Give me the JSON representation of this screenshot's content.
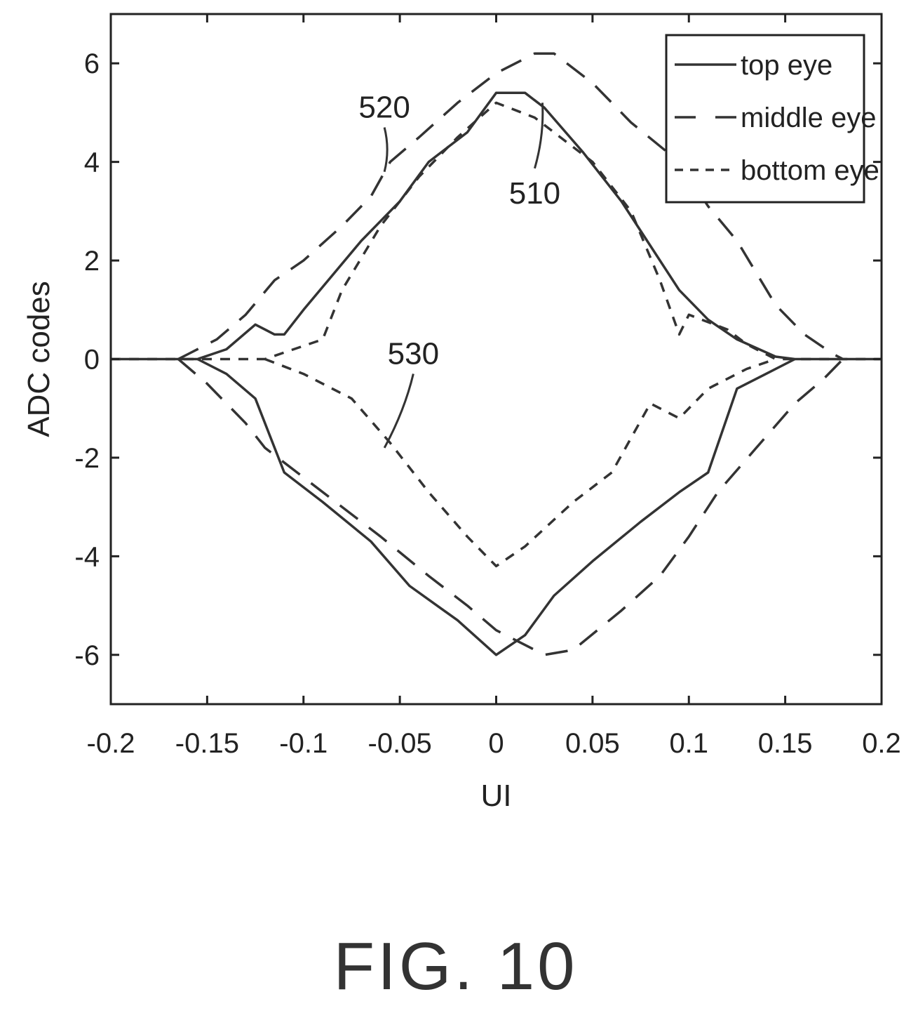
{
  "figure_label": "FIG. 10",
  "chart_data": {
    "type": "line",
    "xlabel": "UI",
    "ylabel": "ADC codes",
    "xlim": [
      -0.2,
      0.2
    ],
    "ylim": [
      -7,
      7
    ],
    "xticks": [
      -0.2,
      -0.15,
      -0.1,
      -0.05,
      0,
      0.05,
      0.1,
      0.15,
      0.2
    ],
    "yticks": [
      -6,
      -4,
      -2,
      0,
      2,
      4,
      6
    ],
    "xtick_labels": [
      "-0.2",
      "-0.15",
      "-0.1",
      "-0.05",
      "0",
      "0.05",
      "0.1",
      "0.15",
      "0.2"
    ],
    "ytick_labels": [
      "-6",
      "-4",
      "-2",
      "0",
      "2",
      "4",
      "6"
    ],
    "grid": false,
    "legend_position": "top-right",
    "colors": {
      "line": "#333333",
      "axis": "#222222"
    },
    "series": [
      {
        "name": "top eye",
        "dash": "solid",
        "upper": [
          [
            -0.2,
            0
          ],
          [
            -0.155,
            0
          ],
          [
            -0.14,
            0.2
          ],
          [
            -0.125,
            0.7
          ],
          [
            -0.115,
            0.5
          ],
          [
            -0.11,
            0.5
          ],
          [
            -0.1,
            1.0
          ],
          [
            -0.085,
            1.7
          ],
          [
            -0.07,
            2.4
          ],
          [
            -0.05,
            3.2
          ],
          [
            -0.035,
            4.0
          ],
          [
            -0.015,
            4.6
          ],
          [
            0,
            5.4
          ],
          [
            0.015,
            5.4
          ],
          [
            0.025,
            5.1
          ],
          [
            0.045,
            4.2
          ],
          [
            0.065,
            3.2
          ],
          [
            0.08,
            2.3
          ],
          [
            0.095,
            1.4
          ],
          [
            0.11,
            0.8
          ],
          [
            0.125,
            0.4
          ],
          [
            0.145,
            0.05
          ],
          [
            0.155,
            0
          ],
          [
            0.2,
            0
          ]
        ],
        "lower": [
          [
            -0.155,
            0
          ],
          [
            -0.14,
            -0.3
          ],
          [
            -0.125,
            -0.8
          ],
          [
            -0.11,
            -2.3
          ],
          [
            -0.09,
            -2.9
          ],
          [
            -0.065,
            -3.7
          ],
          [
            -0.045,
            -4.6
          ],
          [
            -0.02,
            -5.3
          ],
          [
            0,
            -6.0
          ],
          [
            0.015,
            -5.6
          ],
          [
            0.03,
            -4.8
          ],
          [
            0.05,
            -4.1
          ],
          [
            0.075,
            -3.3
          ],
          [
            0.095,
            -2.7
          ],
          [
            0.11,
            -2.3
          ],
          [
            0.125,
            -0.6
          ],
          [
            0.14,
            -0.3
          ],
          [
            0.155,
            0
          ]
        ]
      },
      {
        "name": "middle eye",
        "dash": "long-dash",
        "upper": [
          [
            -0.165,
            0
          ],
          [
            -0.16,
            0.1
          ],
          [
            -0.145,
            0.4
          ],
          [
            -0.13,
            0.9
          ],
          [
            -0.115,
            1.6
          ],
          [
            -0.1,
            2.0
          ],
          [
            -0.08,
            2.7
          ],
          [
            -0.065,
            3.3
          ],
          [
            -0.055,
            4.0
          ],
          [
            -0.04,
            4.5
          ],
          [
            -0.02,
            5.2
          ],
          [
            0,
            5.8
          ],
          [
            0.02,
            6.2
          ],
          [
            0.03,
            6.2
          ],
          [
            0.05,
            5.6
          ],
          [
            0.07,
            4.8
          ],
          [
            0.095,
            4.0
          ],
          [
            0.11,
            3.1
          ],
          [
            0.125,
            2.4
          ],
          [
            0.145,
            1.1
          ],
          [
            0.16,
            0.5
          ],
          [
            0.175,
            0.1
          ],
          [
            0.18,
            0
          ]
        ],
        "lower": [
          [
            -0.165,
            0
          ],
          [
            -0.15,
            -0.5
          ],
          [
            -0.13,
            -1.3
          ],
          [
            -0.12,
            -1.8
          ],
          [
            -0.1,
            -2.4
          ],
          [
            -0.08,
            -3.0
          ],
          [
            -0.06,
            -3.6
          ],
          [
            -0.035,
            -4.4
          ],
          [
            -0.015,
            -5.0
          ],
          [
            0,
            -5.5
          ],
          [
            0.015,
            -5.8
          ],
          [
            0.025,
            -6.0
          ],
          [
            0.04,
            -5.9
          ],
          [
            0.065,
            -5.1
          ],
          [
            0.085,
            -4.4
          ],
          [
            0.1,
            -3.6
          ],
          [
            0.115,
            -2.7
          ],
          [
            0.135,
            -1.8
          ],
          [
            0.155,
            -0.9
          ],
          [
            0.17,
            -0.4
          ],
          [
            0.18,
            0
          ]
        ]
      },
      {
        "name": "bottom eye",
        "dash": "short-dash",
        "upper": [
          [
            -0.2,
            0
          ],
          [
            -0.12,
            0
          ],
          [
            -0.09,
            0.4
          ],
          [
            -0.08,
            1.4
          ],
          [
            -0.06,
            2.7
          ],
          [
            -0.04,
            3.7
          ],
          [
            -0.02,
            4.5
          ],
          [
            0,
            5.2
          ],
          [
            0.02,
            4.9
          ],
          [
            0.05,
            4.0
          ],
          [
            0.07,
            3.0
          ],
          [
            0.085,
            1.6
          ],
          [
            0.095,
            0.5
          ],
          [
            0.1,
            0.9
          ],
          [
            0.12,
            0.6
          ],
          [
            0.13,
            0.3
          ],
          [
            0.145,
            0
          ],
          [
            0.2,
            0
          ]
        ],
        "lower": [
          [
            -0.12,
            0
          ],
          [
            -0.1,
            -0.3
          ],
          [
            -0.075,
            -0.8
          ],
          [
            -0.055,
            -1.7
          ],
          [
            -0.035,
            -2.7
          ],
          [
            -0.015,
            -3.6
          ],
          [
            0,
            -4.2
          ],
          [
            0.015,
            -3.8
          ],
          [
            0.04,
            -2.9
          ],
          [
            0.06,
            -2.3
          ],
          [
            0.08,
            -0.9
          ],
          [
            0.095,
            -1.2
          ],
          [
            0.11,
            -0.6
          ],
          [
            0.13,
            -0.2
          ],
          [
            0.145,
            0
          ]
        ]
      }
    ],
    "annotations": [
      {
        "text": "520",
        "x": -0.058,
        "y": 4.9,
        "target_x": -0.058,
        "target_y": 3.8
      },
      {
        "text": "510",
        "x": 0.02,
        "y": 3.3,
        "target_x": 0.024,
        "target_y": 5.2
      },
      {
        "text": "530",
        "x": -0.043,
        "y": -0.1,
        "target_x": -0.058,
        "target_y": -1.8
      }
    ]
  }
}
